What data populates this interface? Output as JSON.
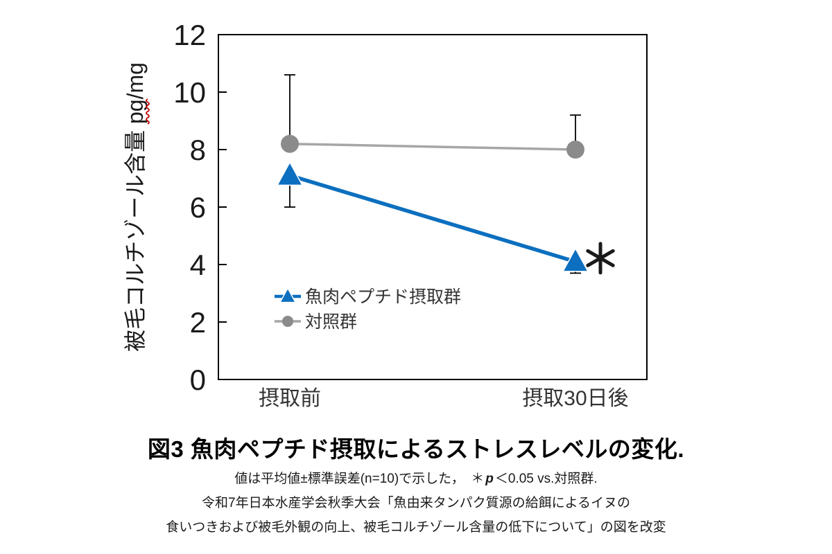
{
  "figure": {
    "title": "図3 魚肉ペプチド摂取によるストレスレベルの変化.",
    "footnote1_pre": "値は平均値±標準誤差(n=10)で示した，　＊",
    "footnote1_pvar": "p",
    "footnote1_post": "＜0.05 vs.対照群.",
    "footnote2": "令和7年日本水産学会秋季大会「魚由来タンパク質源の給餌によるイヌの",
    "footnote3": "食いつきおよび被毛外観の向上、被毛コルチゾール含量の低下について」の図を改変"
  },
  "chart_data": {
    "type": "line",
    "categories": [
      "摂取前",
      "摂取30日後"
    ],
    "series": [
      {
        "name": "魚肉ペプチド摂取群",
        "values": [
          7.1,
          4.1
        ],
        "errors": [
          1.1,
          0.4
        ],
        "error_direction": "down",
        "marker": "triangle",
        "color": "#0C6FBF",
        "line_color": "#0C6FBF",
        "line_width": 5.5,
        "significance": [
          null,
          "*"
        ]
      },
      {
        "name": "対照群",
        "values": [
          8.2,
          8.0
        ],
        "errors": [
          2.4,
          1.2
        ],
        "error_direction": "up",
        "marker": "circle",
        "color": "#8B8B8B",
        "line_color": "#A6A6A6",
        "line_width": 3.5,
        "significance": [
          null,
          null
        ]
      }
    ],
    "ylabel": "被毛コルチゾール含量 pg/mg",
    "ylabel_unit_underline": {
      "text": "pg",
      "color": "#C00000"
    },
    "ylim": [
      0,
      12
    ],
    "ytick_step": 2,
    "grid": false,
    "legend_position": "inside-lower-left",
    "legend_labels": [
      "魚肉ペプチド摂取群",
      "対照群"
    ],
    "colors": {
      "axis": "#000000",
      "error_bar": "#000000",
      "tick_label": "#1a1a1a",
      "category_label": "#333333",
      "legend_text": "#333333"
    }
  }
}
